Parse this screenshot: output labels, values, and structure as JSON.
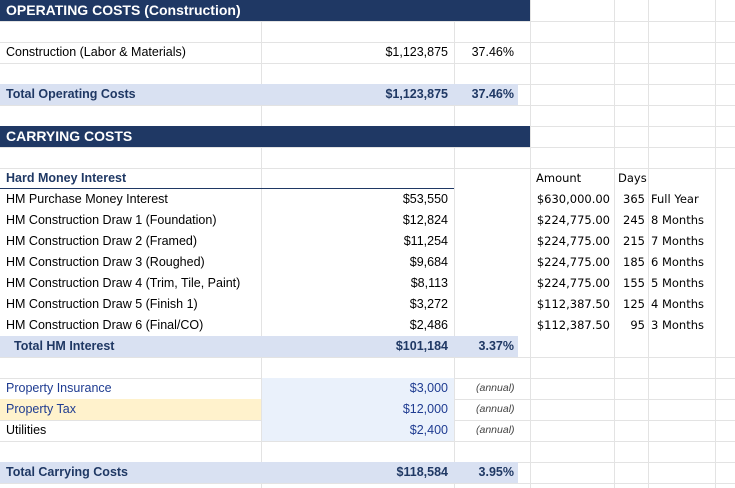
{
  "operating": {
    "title": "OPERATING COSTS  (Construction)",
    "construction_label": "Construction (Labor & Materials)",
    "construction_amount": "$1,123,875",
    "construction_pct": "37.46%",
    "total_label": "Total Operating Costs",
    "total_amount": "$1,123,875",
    "total_pct": "37.46%"
  },
  "carrying": {
    "title": "CARRYING COSTS",
    "hm_header": "Hard Money Interest",
    "hm_rows": [
      {
        "label": "HM Purchase Money Interest",
        "amount": "$53,550"
      },
      {
        "label": "HM Construction Draw 1 (Foundation)",
        "amount": "$12,824"
      },
      {
        "label": "HM Construction Draw 2 (Framed)",
        "amount": "$11,254"
      },
      {
        "label": "HM Construction Draw 3 (Roughed)",
        "amount": "$9,684"
      },
      {
        "label": "HM Construction Draw 4 (Trim, Tile, Paint)",
        "amount": "$8,113"
      },
      {
        "label": "HM Construction Draw 5 (Finish 1)",
        "amount": "$3,272"
      },
      {
        "label": "HM Construction Draw 6 (Final/CO)",
        "amount": "$2,486"
      }
    ],
    "total_hm_label": "Total HM Interest",
    "total_hm_amount": "$101,184",
    "total_hm_pct": "3.37%",
    "insurance_label": "Property Insurance",
    "insurance_amount": "$3,000",
    "insurance_note": "(annual)",
    "tax_label": "Property Tax",
    "tax_amount": "$12,000",
    "tax_note": "(annual)",
    "utilities_label": "Utilities",
    "utilities_amount": "$2,400",
    "utilities_note": "(annual)",
    "total_label": "Total Carrying Costs",
    "total_amount": "$118,584",
    "total_pct": "3.95%"
  },
  "side": {
    "amount_header": "Amount",
    "days_header": "Days",
    "rows": [
      {
        "amount": "$630,000.00",
        "days": "365",
        "period": "Full Year"
      },
      {
        "amount": "$224,775.00",
        "days": "245",
        "period": "8 Months"
      },
      {
        "amount": "$224,775.00",
        "days": "215",
        "period": "7 Months"
      },
      {
        "amount": "$224,775.00",
        "days": "185",
        "period": "6 Months"
      },
      {
        "amount": "$224,775.00",
        "days": "155",
        "period": "5 Months"
      },
      {
        "amount": "$112,387.50",
        "days": "125",
        "period": "4 Months"
      },
      {
        "amount": "$112,387.50",
        "days": "95",
        "period": "3 Months"
      }
    ]
  },
  "colors": {
    "header_band": "#1f3864",
    "total_shade": "#d9e1f2",
    "input_shade": "#eaf1fb",
    "tax_highlight": "#fff2cc"
  }
}
